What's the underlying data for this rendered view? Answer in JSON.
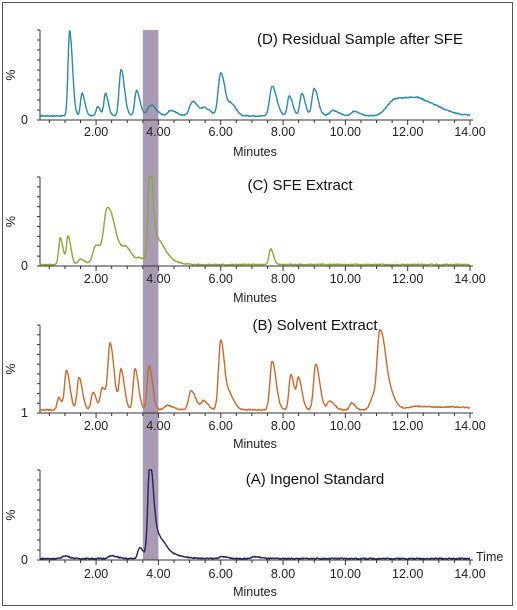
{
  "chart_data": {
    "type": "line",
    "xlim": [
      0.2,
      14.0
    ],
    "x_ticks": [
      "2.00",
      "4.00",
      "6.00",
      "8.00",
      "10.00",
      "12.00",
      "14.00"
    ],
    "x_tick_values": [
      2,
      4,
      6,
      8,
      10,
      12,
      14
    ],
    "highlight_band": {
      "x_start": 3.5,
      "x_end": 4.0,
      "color": "#9a8aa6"
    },
    "panels": [
      {
        "title": "(D) Residual Sample after SFE",
        "ylabel": "%",
        "y_base_label": "0",
        "xlabel": "Minutes",
        "time_label": "",
        "color": "#2a8aa6",
        "baseline": 4,
        "peaks": [
          [
            1.15,
            0.05,
            95
          ],
          [
            1.55,
            0.05,
            25
          ],
          [
            2.05,
            0.05,
            10
          ],
          [
            2.3,
            0.05,
            25
          ],
          [
            2.8,
            0.06,
            52
          ],
          [
            3.3,
            0.06,
            28
          ],
          [
            3.75,
            0.1,
            12
          ],
          [
            4.4,
            0.1,
            6
          ],
          [
            5.1,
            0.1,
            16
          ],
          [
            5.5,
            0.1,
            8
          ],
          [
            6.0,
            0.08,
            48
          ],
          [
            6.35,
            0.08,
            12
          ],
          [
            7.65,
            0.08,
            33
          ],
          [
            8.2,
            0.06,
            22
          ],
          [
            8.6,
            0.06,
            25
          ],
          [
            9.0,
            0.07,
            30
          ],
          [
            9.6,
            0.1,
            6
          ],
          [
            10.3,
            0.1,
            5
          ],
          [
            11.6,
            0.25,
            18
          ],
          [
            12.4,
            0.35,
            16
          ]
        ]
      },
      {
        "title": "(C) SFE Extract",
        "ylabel": "%",
        "y_base_label": "0",
        "xlabel": "Minutes",
        "time_label": "",
        "color": "#8aa83a",
        "baseline": 1,
        "peaks": [
          [
            0.85,
            0.05,
            30
          ],
          [
            1.1,
            0.05,
            32
          ],
          [
            1.5,
            0.08,
            6
          ],
          [
            2.0,
            0.1,
            22
          ],
          [
            2.35,
            0.1,
            55
          ],
          [
            2.6,
            0.15,
            22
          ],
          [
            3.0,
            0.12,
            12
          ],
          [
            3.4,
            0.08,
            5
          ],
          [
            3.72,
            0.05,
            95
          ],
          [
            3.85,
            0.15,
            30
          ],
          [
            4.2,
            0.2,
            5
          ],
          [
            7.6,
            0.05,
            18
          ]
        ]
      },
      {
        "title": "(B) Solvent Extract",
        "ylabel": "%",
        "y_base_label": "1",
        "xlabel": "Minutes",
        "time_label": "",
        "color": "#c96a2c",
        "baseline": 3,
        "peaks": [
          [
            0.8,
            0.05,
            14
          ],
          [
            1.05,
            0.06,
            45
          ],
          [
            1.45,
            0.06,
            37
          ],
          [
            1.9,
            0.06,
            20
          ],
          [
            2.2,
            0.06,
            25
          ],
          [
            2.45,
            0.07,
            75
          ],
          [
            2.8,
            0.06,
            45
          ],
          [
            3.25,
            0.06,
            47
          ],
          [
            3.7,
            0.06,
            50
          ],
          [
            4.3,
            0.1,
            5
          ],
          [
            5.05,
            0.08,
            22
          ],
          [
            5.45,
            0.08,
            10
          ],
          [
            6.0,
            0.07,
            80
          ],
          [
            6.3,
            0.08,
            15
          ],
          [
            7.65,
            0.07,
            55
          ],
          [
            8.25,
            0.06,
            40
          ],
          [
            8.5,
            0.06,
            35
          ],
          [
            9.05,
            0.07,
            52
          ],
          [
            9.5,
            0.08,
            10
          ],
          [
            10.2,
            0.06,
            8
          ],
          [
            10.9,
            0.1,
            15
          ],
          [
            11.1,
            0.08,
            75
          ],
          [
            11.3,
            0.12,
            30
          ],
          [
            12.3,
            0.3,
            4
          ],
          [
            13.5,
            0.4,
            3
          ]
        ]
      },
      {
        "title": "(A) Ingenol Standard",
        "ylabel": "%",
        "y_base_label": "0",
        "xlabel": "Minutes",
        "time_label": "Time",
        "color": "#24245a",
        "baseline": 1,
        "peaks": [
          [
            1.0,
            0.08,
            3
          ],
          [
            2.5,
            0.1,
            3
          ],
          [
            3.4,
            0.06,
            12
          ],
          [
            3.72,
            0.06,
            95
          ],
          [
            3.9,
            0.15,
            25
          ],
          [
            4.3,
            0.25,
            4
          ],
          [
            6.05,
            0.1,
            2
          ],
          [
            7.1,
            0.1,
            2
          ]
        ]
      }
    ]
  }
}
